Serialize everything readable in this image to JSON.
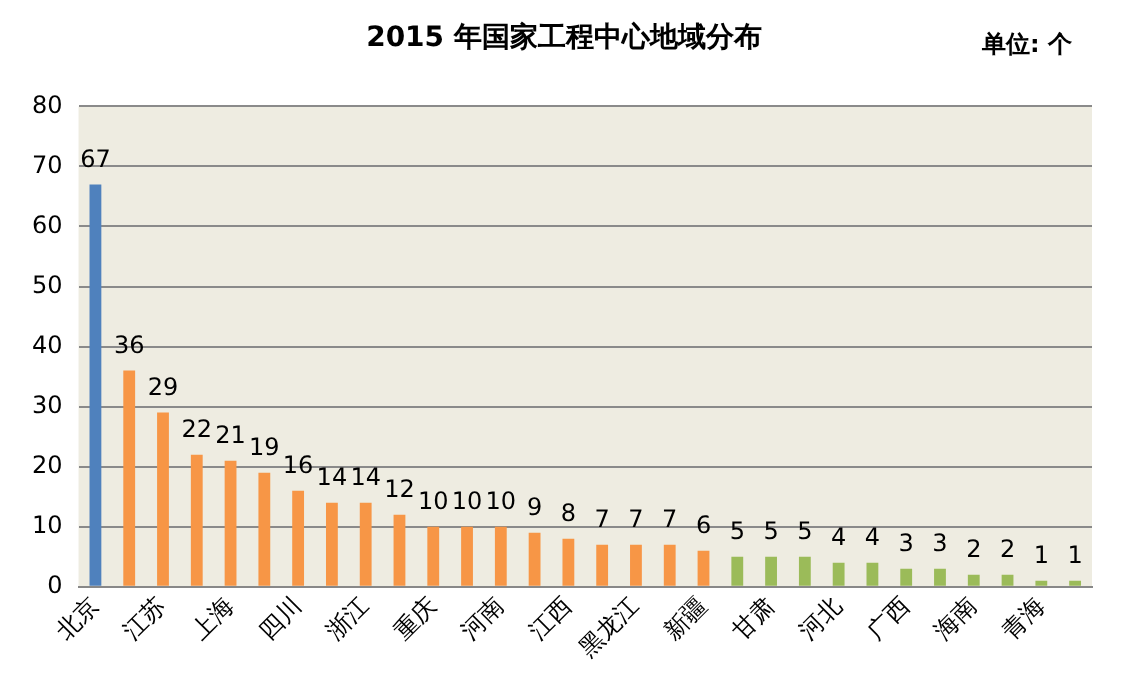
{
  "chart_data": {
    "type": "bar",
    "title": "2015 年国家工程中心地域分布",
    "annotations": [
      "单位: 个"
    ],
    "categories": [
      "北京",
      null,
      "江苏",
      null,
      "上海",
      null,
      "四川",
      null,
      "浙江",
      null,
      "重庆",
      null,
      "河南",
      null,
      "江西",
      null,
      "黑龙江",
      null,
      "新疆",
      null,
      "甘肃",
      null,
      "河北",
      null,
      "广西",
      null,
      "海南",
      null,
      "青海",
      null
    ],
    "values": [
      67,
      36,
      29,
      22,
      21,
      19,
      16,
      14,
      14,
      12,
      10,
      10,
      10,
      9,
      8,
      7,
      7,
      7,
      6,
      5,
      5,
      5,
      4,
      4,
      3,
      3,
      2,
      2,
      1,
      1
    ],
    "colors": [
      "#4f81bd",
      "#f79646",
      "#f79646",
      "#f79646",
      "#f79646",
      "#f79646",
      "#f79646",
      "#f79646",
      "#f79646",
      "#f79646",
      "#f79646",
      "#f79646",
      "#f79646",
      "#f79646",
      "#f79646",
      "#f79646",
      "#f79646",
      "#f79646",
      "#f79646",
      "#9bbb59",
      "#9bbb59",
      "#9bbb59",
      "#9bbb59",
      "#9bbb59",
      "#9bbb59",
      "#9bbb59",
      "#9bbb59",
      "#9bbb59",
      "#9bbb59",
      "#9bbb59"
    ],
    "ylim": [
      0,
      80
    ],
    "yticks": [
      0,
      10,
      20,
      30,
      40,
      50,
      60,
      70,
      80
    ],
    "grid": "y",
    "data_labels": true,
    "legend": false
  }
}
